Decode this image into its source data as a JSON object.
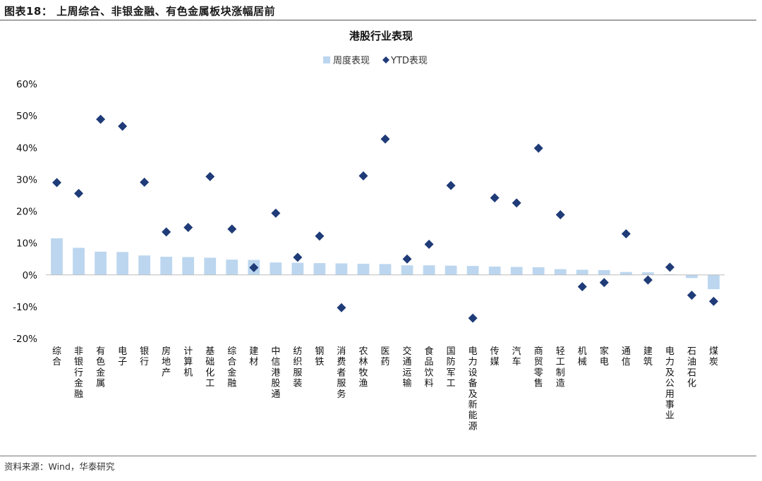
{
  "figure": {
    "title": "图表18：  上周综合、非银金融、有色金属板块涨幅居前",
    "source": "资料来源：Wind，华泰研究"
  },
  "chart_data": {
    "type": "bar",
    "title": "港股行业表现",
    "xlabel": "",
    "ylabel": "",
    "ylim": [
      -0.2,
      0.6
    ],
    "yticks": [
      -0.2,
      -0.1,
      0,
      0.1,
      0.2,
      0.3,
      0.4,
      0.5,
      0.6
    ],
    "ytick_labels": [
      "-20%",
      "-10%",
      "0%",
      "10%",
      "20%",
      "30%",
      "40%",
      "50%",
      "60%"
    ],
    "legend_position": "top-center",
    "grid": false,
    "colors": {
      "weekly": "#bcd6ef",
      "ytd": "#1f3b78"
    },
    "categories": [
      "综合",
      "非银行金融",
      "有色金属",
      "电子",
      "银行",
      "房地产",
      "计算机",
      "基础化工",
      "综合金融",
      "建材",
      "中信港股通",
      "纺织服装",
      "钢铁",
      "消费者服务",
      "农林牧渔",
      "医药",
      "交通运输",
      "食品饮料",
      "国防军工",
      "电力设备及新能源",
      "传媒",
      "汽车",
      "商贸零售",
      "轻工制造",
      "机械",
      "家电",
      "通信",
      "建筑",
      "电力及公用事业",
      "石油石化",
      "煤炭"
    ],
    "series": [
      {
        "name": "周度表现",
        "type": "bar",
        "values": [
          0.115,
          0.085,
          0.073,
          0.072,
          0.061,
          0.057,
          0.056,
          0.054,
          0.048,
          0.047,
          0.039,
          0.038,
          0.037,
          0.036,
          0.035,
          0.034,
          0.03,
          0.03,
          0.029,
          0.028,
          0.026,
          0.025,
          0.024,
          0.018,
          0.016,
          0.015,
          0.009,
          0.008,
          0.002,
          -0.01,
          -0.045
        ]
      },
      {
        "name": "YTD表现",
        "type": "scatter",
        "marker": "diamond",
        "values": [
          0.29,
          0.256,
          0.489,
          0.467,
          0.291,
          0.135,
          0.149,
          0.309,
          0.144,
          0.023,
          0.194,
          0.055,
          0.122,
          -0.103,
          0.311,
          0.427,
          0.05,
          0.096,
          0.281,
          -0.136,
          0.242,
          0.226,
          0.398,
          0.189,
          -0.037,
          -0.024,
          0.129,
          -0.016,
          0.024,
          -0.064,
          -0.083
        ]
      }
    ]
  }
}
